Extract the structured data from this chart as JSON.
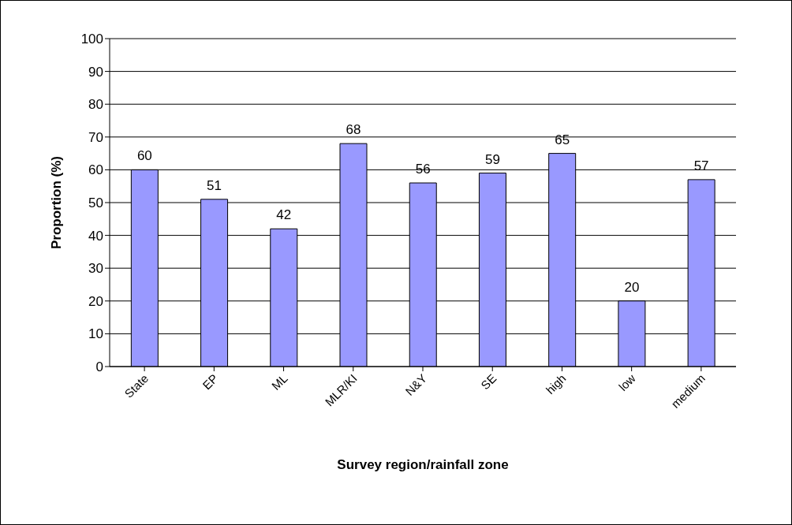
{
  "chart_data": {
    "type": "bar",
    "xlabel": "Survey region/rainfall zone",
    "ylabel": "Proportion (%)",
    "categories": [
      "State",
      "EP",
      "ML",
      "MLR/KI",
      "N&Y",
      "SE",
      "high",
      "low",
      "medium"
    ],
    "values": [
      60,
      51,
      42,
      68,
      56,
      59,
      65,
      20,
      57
    ],
    "color": "#9999ff",
    "ylim": [
      0,
      100
    ],
    "yticks": [
      0,
      10,
      20,
      30,
      40,
      50,
      60,
      70,
      80,
      90,
      100
    ],
    "grid": "y",
    "data_labels": true
  }
}
